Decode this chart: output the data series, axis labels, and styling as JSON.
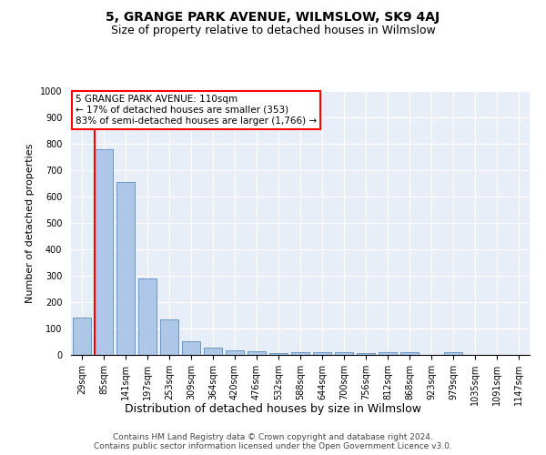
{
  "title": "5, GRANGE PARK AVENUE, WILMSLOW, SK9 4AJ",
  "subtitle": "Size of property relative to detached houses in Wilmslow",
  "xlabel": "Distribution of detached houses by size in Wilmslow",
  "ylabel": "Number of detached properties",
  "categories": [
    "29sqm",
    "85sqm",
    "141sqm",
    "197sqm",
    "253sqm",
    "309sqm",
    "364sqm",
    "420sqm",
    "476sqm",
    "532sqm",
    "588sqm",
    "644sqm",
    "700sqm",
    "756sqm",
    "812sqm",
    "868sqm",
    "923sqm",
    "979sqm",
    "1035sqm",
    "1091sqm",
    "1147sqm"
  ],
  "values": [
    140,
    780,
    655,
    290,
    133,
    52,
    28,
    18,
    15,
    8,
    10,
    10,
    10,
    8,
    9,
    9,
    0,
    10,
    0,
    0,
    0
  ],
  "bar_color": "#aec6e8",
  "bar_edge_color": "#5b8db8",
  "vline_color": "red",
  "property_bin": 1,
  "annotation_text": "5 GRANGE PARK AVENUE: 110sqm\n← 17% of detached houses are smaller (353)\n83% of semi-detached houses are larger (1,766) →",
  "ylim": [
    0,
    1000
  ],
  "yticks": [
    0,
    100,
    200,
    300,
    400,
    500,
    600,
    700,
    800,
    900,
    1000
  ],
  "footer": "Contains HM Land Registry data © Crown copyright and database right 2024.\nContains public sector information licensed under the Open Government Licence v3.0.",
  "plot_bg_color": "#e8eef8",
  "fig_bg_color": "#ffffff",
  "title_fontsize": 10,
  "subtitle_fontsize": 9,
  "ylabel_fontsize": 8,
  "xlabel_fontsize": 9,
  "tick_fontsize": 7,
  "annotation_fontsize": 7.5,
  "footer_fontsize": 6.5
}
